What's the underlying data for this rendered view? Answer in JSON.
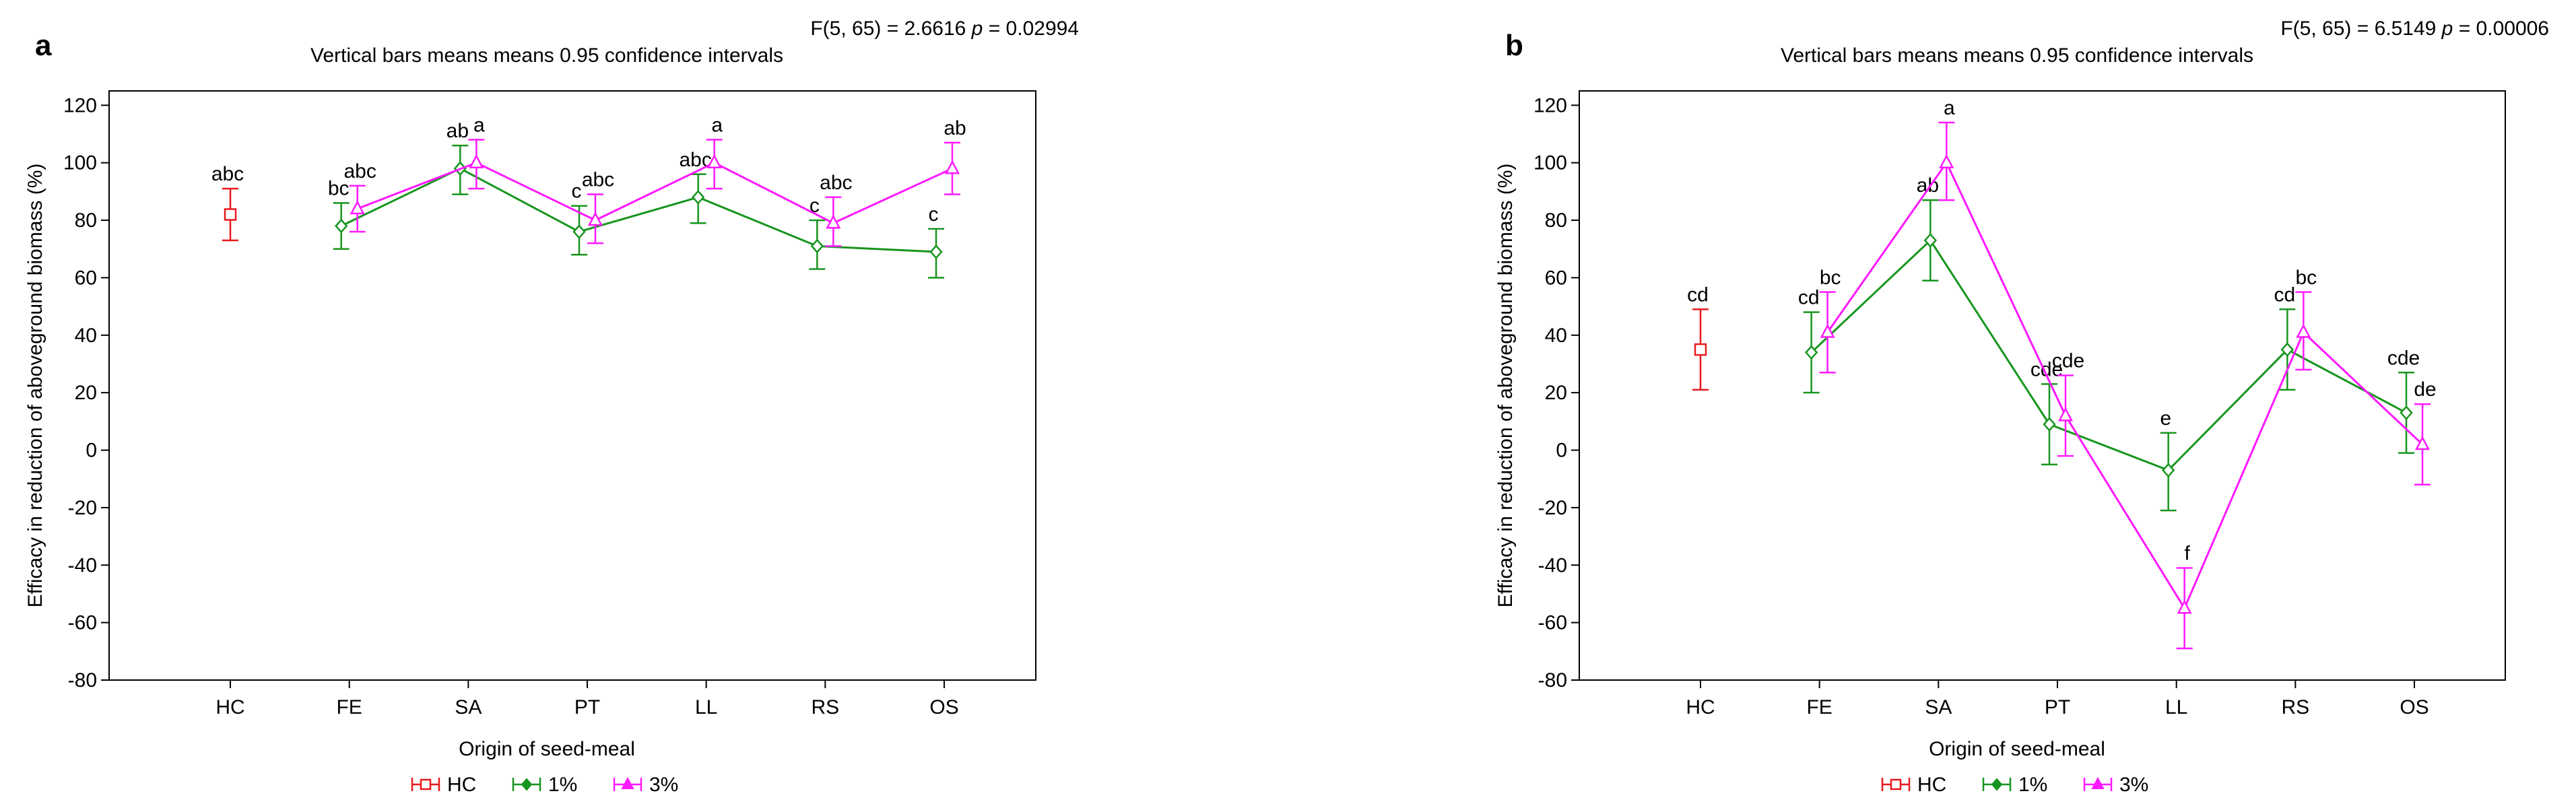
{
  "colors": {
    "HC": "#e8191c",
    "1%": "#17951e",
    "3%": "#ff19ff",
    "axis": "#000000"
  },
  "chart_data": [
    {
      "type": "line",
      "panel_letter": "a",
      "title": "Vertical bars means means 0.95 confidence intervals",
      "stats": "F(5, 65) = 2.6616",
      "stats_p": "p = 0.02994",
      "xlabel": "Origin of seed-meal",
      "ylabel": "Efficacy in reduction of aboveground biomass (%)",
      "ylim": [
        -80,
        125
      ],
      "yticks": [
        "120",
        "100",
        "80",
        "60",
        "40",
        "20",
        "0",
        "-20",
        "-40",
        "-60",
        "-80"
      ],
      "categories": [
        "HC",
        "FE",
        "SA",
        "PT",
        "LL",
        "RS",
        "OS"
      ],
      "series": [
        {
          "name": "HC",
          "marker": "square",
          "points": [
            {
              "x": "HC",
              "y": 82,
              "lo": 73,
              "hi": 91,
              "label": "abc"
            }
          ]
        },
        {
          "name": "1%",
          "marker": "diamond",
          "points": [
            {
              "x": "FE",
              "y": 78,
              "lo": 70,
              "hi": 86,
              "label": "bc"
            },
            {
              "x": "SA",
              "y": 98,
              "lo": 89,
              "hi": 106,
              "label": "ab"
            },
            {
              "x": "PT",
              "y": 76,
              "lo": 68,
              "hi": 85,
              "label": "c"
            },
            {
              "x": "LL",
              "y": 88,
              "lo": 79,
              "hi": 96,
              "label": "abc"
            },
            {
              "x": "RS",
              "y": 71,
              "lo": 63,
              "hi": 80,
              "label": "c"
            },
            {
              "x": "OS",
              "y": 69,
              "lo": 60,
              "hi": 77,
              "label": "c"
            }
          ]
        },
        {
          "name": "3%",
          "marker": "triangle",
          "points": [
            {
              "x": "FE",
              "y": 84,
              "lo": 76,
              "hi": 92,
              "label": "abc"
            },
            {
              "x": "SA",
              "y": 100,
              "lo": 91,
              "hi": 108,
              "label": "a"
            },
            {
              "x": "PT",
              "y": 80,
              "lo": 72,
              "hi": 89,
              "label": "abc"
            },
            {
              "x": "LL",
              "y": 100,
              "lo": 91,
              "hi": 108,
              "label": "a"
            },
            {
              "x": "RS",
              "y": 79,
              "lo": 71,
              "hi": 88,
              "label": "abc"
            },
            {
              "x": "OS",
              "y": 98,
              "lo": 89,
              "hi": 107,
              "label": "ab"
            }
          ]
        }
      ],
      "legend": [
        "HC",
        "1%",
        "3%"
      ],
      "legend_position": "bottom-center",
      "grid": false
    },
    {
      "type": "line",
      "panel_letter": "b",
      "title": "Vertical bars means means 0.95 confidence intervals",
      "stats": "F(5, 65) = 6.5149",
      "stats_p": "p = 0.00006",
      "xlabel": "Origin of seed-meal",
      "ylabel": "Efficacy in reduction of aboveground biomass (%)",
      "ylim": [
        -80,
        125
      ],
      "yticks": [
        "120",
        "100",
        "80",
        "60",
        "40",
        "20",
        "0",
        "-20",
        "-40",
        "-60",
        "-80"
      ],
      "categories": [
        "HC",
        "FE",
        "SA",
        "PT",
        "LL",
        "RS",
        "OS"
      ],
      "series": [
        {
          "name": "HC",
          "marker": "square",
          "points": [
            {
              "x": "HC",
              "y": 35,
              "lo": 21,
              "hi": 49,
              "label": "cd"
            }
          ]
        },
        {
          "name": "1%",
          "marker": "diamond",
          "points": [
            {
              "x": "FE",
              "y": 34,
              "lo": 20,
              "hi": 48,
              "label": "cd"
            },
            {
              "x": "SA",
              "y": 73,
              "lo": 59,
              "hi": 87,
              "label": "ab"
            },
            {
              "x": "PT",
              "y": 9,
              "lo": -5,
              "hi": 23,
              "label": "cde"
            },
            {
              "x": "LL",
              "y": -7,
              "lo": -21,
              "hi": 6,
              "label": "e"
            },
            {
              "x": "RS",
              "y": 35,
              "lo": 21,
              "hi": 49,
              "label": "cd"
            },
            {
              "x": "OS",
              "y": 13,
              "lo": -1,
              "hi": 27,
              "label": "cde"
            }
          ]
        },
        {
          "name": "3%",
          "marker": "triangle",
          "points": [
            {
              "x": "FE",
              "y": 41,
              "lo": 27,
              "hi": 55,
              "label": "bc"
            },
            {
              "x": "SA",
              "y": 100,
              "lo": 87,
              "hi": 114,
              "label": "a"
            },
            {
              "x": "PT",
              "y": 12,
              "lo": -2,
              "hi": 26,
              "label": "cde"
            },
            {
              "x": "LL",
              "y": -55,
              "lo": -69,
              "hi": -41,
              "label": "f"
            },
            {
              "x": "RS",
              "y": 41,
              "lo": 28,
              "hi": 55,
              "label": "bc"
            },
            {
              "x": "OS",
              "y": 2,
              "lo": -12,
              "hi": 16,
              "label": "de"
            }
          ]
        }
      ],
      "legend": [
        "HC",
        "1%",
        "3%"
      ],
      "legend_position": "bottom-center",
      "grid": false
    }
  ]
}
